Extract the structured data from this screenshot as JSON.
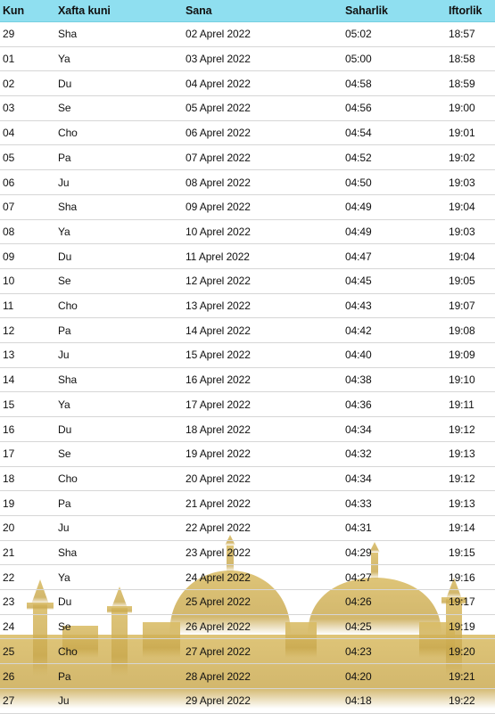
{
  "table": {
    "headers": [
      "Kun",
      "Xafta kuni",
      "Sana",
      "Saharlik",
      "Iftorlik"
    ],
    "rows": [
      [
        "29",
        "Sha",
        "02 Aprel 2022",
        "05:02",
        "18:57"
      ],
      [
        "01",
        "Ya",
        "03 Aprel 2022",
        "05:00",
        "18:58"
      ],
      [
        "02",
        "Du",
        "04 Aprel 2022",
        "04:58",
        "18:59"
      ],
      [
        "03",
        "Se",
        "05 Aprel 2022",
        "04:56",
        "19:00"
      ],
      [
        "04",
        "Cho",
        "06 Aprel 2022",
        "04:54",
        "19:01"
      ],
      [
        "05",
        "Pa",
        "07 Aprel 2022",
        "04:52",
        "19:02"
      ],
      [
        "06",
        "Ju",
        "08 Aprel 2022",
        "04:50",
        "19:03"
      ],
      [
        "07",
        "Sha",
        "09 Aprel 2022",
        "04:49",
        "19:04"
      ],
      [
        "08",
        "Ya",
        "10 Aprel 2022",
        "04:49",
        "19:03"
      ],
      [
        "09",
        "Du",
        "11 Aprel 2022",
        "04:47",
        "19:04"
      ],
      [
        "10",
        "Se",
        "12 Aprel 2022",
        "04:45",
        "19:05"
      ],
      [
        "11",
        "Cho",
        "13 Aprel 2022",
        "04:43",
        "19:07"
      ],
      [
        "12",
        "Pa",
        "14 Aprel 2022",
        "04:42",
        "19:08"
      ],
      [
        "13",
        "Ju",
        "15 Aprel 2022",
        "04:40",
        "19:09"
      ],
      [
        "14",
        "Sha",
        "16 Aprel 2022",
        "04:38",
        "19:10"
      ],
      [
        "15",
        "Ya",
        "17 Aprel 2022",
        "04:36",
        "19:11"
      ],
      [
        "16",
        "Du",
        "18 Aprel 2022",
        "04:34",
        "19:12"
      ],
      [
        "17",
        "Se",
        "19 Aprel 2022",
        "04:32",
        "19:13"
      ],
      [
        "18",
        "Cho",
        "20 Aprel 2022",
        "04:34",
        "19:12"
      ],
      [
        "19",
        "Pa",
        "21 Aprel 2022",
        "04:33",
        "19:13"
      ],
      [
        "20",
        "Ju",
        "22 Aprel 2022",
        "04:31",
        "19:14"
      ],
      [
        "21",
        "Sha",
        "23 Aprel 2022",
        "04:29",
        "19:15"
      ],
      [
        "22",
        "Ya",
        "24 Aprel 2022",
        "04:27",
        "19:16"
      ],
      [
        "23",
        "Du",
        "25 Aprel 2022",
        "04:26",
        "19:17"
      ],
      [
        "24",
        "Se",
        "26 Aprel 2022",
        "04:25",
        "19:19"
      ],
      [
        "25",
        "Cho",
        "27 Aprel 2022",
        "04:23",
        "19:20"
      ],
      [
        "26",
        "Pa",
        "28 Aprel 2022",
        "04:20",
        "19:21"
      ],
      [
        "27",
        "Ju",
        "29 Aprel 2022",
        "04:18",
        "19:22"
      ]
    ]
  },
  "colors": {
    "header_background": "#8fdff0",
    "footer_art": "#c9a84d"
  },
  "footer_art": {
    "icon": "mosque-silhouette-icon"
  }
}
